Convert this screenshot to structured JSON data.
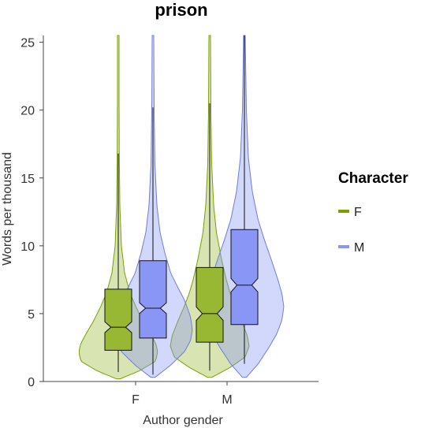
{
  "chart_data": {
    "type": "violin-box",
    "title": "prison",
    "xlabel": "Author gender",
    "ylabel": "Words per thousand",
    "categories": [
      "F",
      "M"
    ],
    "ylim": [
      0,
      25.5
    ],
    "yticks": [
      0,
      5,
      10,
      15,
      20,
      25
    ],
    "legend": {
      "title": "Character",
      "position": "right",
      "entries": [
        {
          "label": "F",
          "color": "#7aa000"
        },
        {
          "label": "M",
          "color": "#8a96f6"
        }
      ]
    },
    "series": [
      {
        "name": "F",
        "color": "#7aa000",
        "fill": "#98b733",
        "groups": {
          "F": {
            "whisker_low": 0.7,
            "q1": 2.3,
            "median": 4.0,
            "q3": 6.8,
            "whisker_high": 16.8,
            "notch_low": 3.6,
            "notch_high": 4.4,
            "ymin": 0.2,
            "ymax": 25.5,
            "density": [
              [
                0.2,
                0.05
              ],
              [
                0.8,
                0.55
              ],
              [
                1.5,
                0.95
              ],
              [
                2.2,
                1.0
              ],
              [
                2.8,
                0.95
              ],
              [
                3.5,
                0.82
              ],
              [
                4.5,
                0.62
              ],
              [
                5.5,
                0.45
              ],
              [
                6.5,
                0.3
              ],
              [
                8.0,
                0.16
              ],
              [
                10,
                0.08
              ],
              [
                13,
                0.04
              ],
              [
                17,
                0.025
              ],
              [
                21,
                0.02
              ],
              [
                25.5,
                0.02
              ]
            ]
          },
          "M": {
            "whisker_low": 0.8,
            "q1": 2.9,
            "median": 5.0,
            "q3": 8.4,
            "whisker_high": 20.5,
            "notch_low": 4.5,
            "notch_high": 5.5,
            "ymin": 0.3,
            "ymax": 25.5,
            "density": [
              [
                0.3,
                0.05
              ],
              [
                1.0,
                0.5
              ],
              [
                1.8,
                0.9
              ],
              [
                2.6,
                1.0
              ],
              [
                3.4,
                0.95
              ],
              [
                4.5,
                0.8
              ],
              [
                5.5,
                0.65
              ],
              [
                6.5,
                0.52
              ],
              [
                7.5,
                0.42
              ],
              [
                9,
                0.3
              ],
              [
                11,
                0.17
              ],
              [
                13,
                0.1
              ],
              [
                16,
                0.05
              ],
              [
                20,
                0.03
              ],
              [
                25.5,
                0.02
              ]
            ]
          }
        }
      },
      {
        "name": "M",
        "color": "#6f7ddc",
        "fill": "#8a96f6",
        "groups": {
          "F": {
            "whisker_low": 0.5,
            "q1": 3.2,
            "median": 5.4,
            "q3": 8.9,
            "whisker_high": 20.2,
            "notch_low": 5.0,
            "notch_high": 5.8,
            "ymin": 0.3,
            "ymax": 25.5,
            "density": [
              [
                0.3,
                0.05
              ],
              [
                1.2,
                0.45
              ],
              [
                2.2,
                0.8
              ],
              [
                3.0,
                0.95
              ],
              [
                3.8,
                1.0
              ],
              [
                4.8,
                0.95
              ],
              [
                6,
                0.8
              ],
              [
                7,
                0.62
              ],
              [
                8,
                0.45
              ],
              [
                9.5,
                0.3
              ],
              [
                11,
                0.18
              ],
              [
                13,
                0.1
              ],
              [
                16,
                0.05
              ],
              [
                20,
                0.03
              ],
              [
                25.5,
                0.02
              ]
            ]
          },
          "M": {
            "whisker_low": 1.3,
            "q1": 4.2,
            "median": 7.1,
            "q3": 11.2,
            "whisker_high": 25.5,
            "notch_low": 6.6,
            "notch_high": 7.6,
            "ymin": 0.3,
            "ymax": 25.5,
            "density": [
              [
                0.3,
                0.05
              ],
              [
                1.3,
                0.35
              ],
              [
                2.5,
                0.62
              ],
              [
                3.5,
                0.82
              ],
              [
                4.5,
                0.95
              ],
              [
                5.5,
                1.0
              ],
              [
                6.5,
                0.95
              ],
              [
                7.5,
                0.85
              ],
              [
                9,
                0.68
              ],
              [
                10.5,
                0.5
              ],
              [
                12,
                0.34
              ],
              [
                14,
                0.2
              ],
              [
                16.5,
                0.1
              ],
              [
                20,
                0.05
              ],
              [
                25.5,
                0.02
              ]
            ]
          }
        }
      }
    ]
  }
}
